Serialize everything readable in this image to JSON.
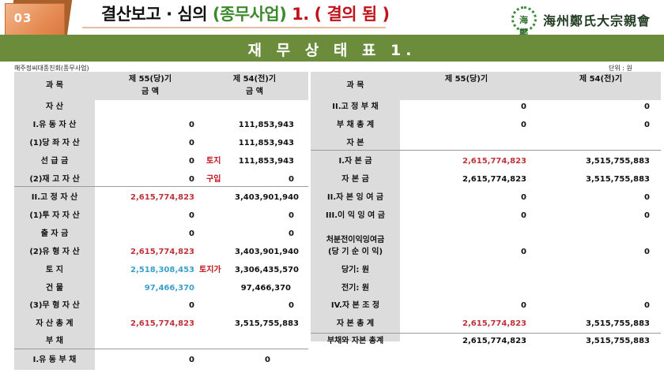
{
  "badge": {
    "number": "03"
  },
  "header": {
    "t1": "결산보고 · 심의",
    "t2": "(종무사업)",
    "t3": "1. ( 결의 됨 )",
    "logo_text": "海州鄭氏大宗親會",
    "logo_mark": "海鄭"
  },
  "section_title": "재 무 상 태 표 1.",
  "meta": {
    "org": "해주정씨대종친회(종무사업)",
    "unit": "단위 : 원"
  },
  "headers": {
    "subject": "과    목",
    "cur_l1": "제 55(당)기",
    "cur_l2": "금    액",
    "prev_l1": "제 54(전)기",
    "prev_l2": "금    액",
    "cur_r": "제 55(당)기",
    "prev_r": "제 54(전)기"
  },
  "left_rows": [
    {
      "label": "자      산",
      "cur": "",
      "note": "",
      "prev": ""
    },
    {
      "label": "I.유 동 자 산",
      "cur": "0",
      "note": "",
      "prev": "111,853,943"
    },
    {
      "label": "(1)당 좌 자 산",
      "cur": "0",
      "note": "",
      "prev": "111,853,943"
    },
    {
      "label": "선 급 금",
      "cur": "0",
      "note": "토지",
      "prev": "111,853,943"
    },
    {
      "label": "(2)재 고 자 산",
      "cur": "0",
      "note": "구입",
      "prev": "0"
    },
    {
      "label": "II.고 정 자 산",
      "cur": "2,615,774,823",
      "note": "",
      "prev": "3,403,901,940"
    },
    {
      "label": "(1)투 자 자 산",
      "cur": "0",
      "note": "",
      "prev": "0"
    },
    {
      "label": "출 자 금",
      "cur": "0",
      "note": "",
      "prev": "0"
    },
    {
      "label": "(2)유 형 자 산",
      "cur": "2,615,774,823",
      "note": "",
      "prev": "3,403,901,940"
    },
    {
      "label": "토      지",
      "cur": "2,518,308,453",
      "note": "토지가",
      "prev": "3,306,435,570"
    },
    {
      "label": "건      물",
      "cur": "97,466,370",
      "note": "",
      "prev": "97,466,370"
    },
    {
      "label": "(3)무 형 자 산",
      "cur": "0",
      "note": "",
      "prev": "0"
    },
    {
      "label": "자 산 총 계",
      "cur": "2,615,774,823",
      "note": "",
      "prev": "3,515,755,883"
    },
    {
      "label": "부      채",
      "cur": "",
      "note": "",
      "prev": ""
    },
    {
      "label": "I.유 동 부 채",
      "cur": "0",
      "note": "",
      "prev": "0"
    }
  ],
  "right_rows": [
    {
      "label": "II.고 정 부 채",
      "cur": "0",
      "prev": "0"
    },
    {
      "label": "부 채 총 계",
      "cur": "0",
      "prev": "0"
    },
    {
      "label": "자      본",
      "cur": "",
      "prev": ""
    },
    {
      "label": "I.자   본   금",
      "cur": "2,615,774,823",
      "prev": "3,515,755,883"
    },
    {
      "label": "자   본   금",
      "cur": "2,615,774,823",
      "prev": "3,515,755,883"
    },
    {
      "label": "II.자 본 잉 여 금",
      "cur": "0",
      "prev": "0"
    },
    {
      "label": "III.이 익 잉 여 금",
      "cur": "0",
      "prev": "0"
    },
    {
      "label": "처분전이익잉여금",
      "label2": "(당 기 순 이 익)",
      "cur": "0",
      "prev": "0"
    },
    {
      "label": "당기:          원",
      "cur": "",
      "prev": ""
    },
    {
      "label": "전기:          원",
      "cur": "",
      "prev": ""
    },
    {
      "label": "IV.자 본 조 정",
      "cur": "0",
      "prev": "0"
    },
    {
      "label": "자 본 총 계",
      "cur": "2,615,774,823",
      "prev": "3,515,755,883"
    },
    {
      "label": "부채와 자본 총계",
      "cur": "2,615,774,823",
      "prev": "3,515,755,883"
    }
  ],
  "colors": {
    "section_bar": "#6a8c3b",
    "highlight_red": "#c0323a",
    "highlight_blue": "#3a9fc9",
    "green_title": "#3d8a2e",
    "red_title": "#c0121b"
  }
}
